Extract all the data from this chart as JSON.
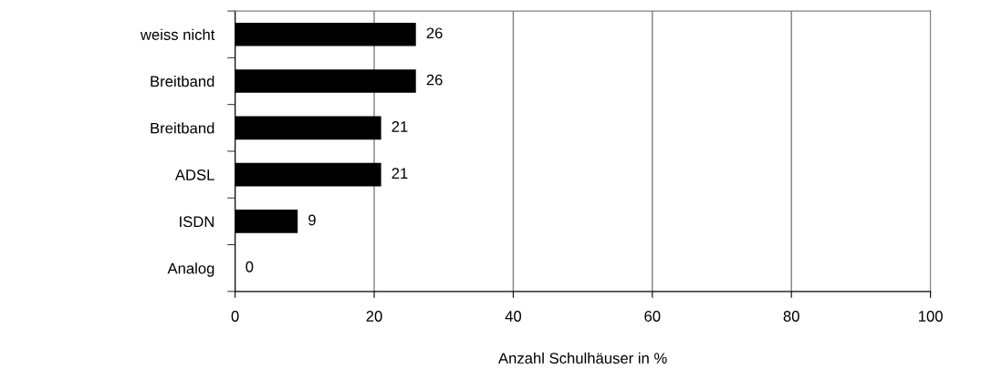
{
  "chart_data": {
    "type": "bar",
    "orientation": "horizontal",
    "xlabel": "Anzahl Schulhäuser in %",
    "categories": [
      "weiss nicht",
      "Breitband",
      "Breitband",
      "ADSL",
      "ISDN",
      "Analog"
    ],
    "values": [
      26,
      26,
      21,
      21,
      9,
      0
    ],
    "color": "#000000",
    "data_labels": true,
    "xlim": [
      0,
      100
    ],
    "xticks": [
      0,
      20,
      40,
      60,
      80,
      100
    ],
    "grid": "x",
    "legend": false
  }
}
